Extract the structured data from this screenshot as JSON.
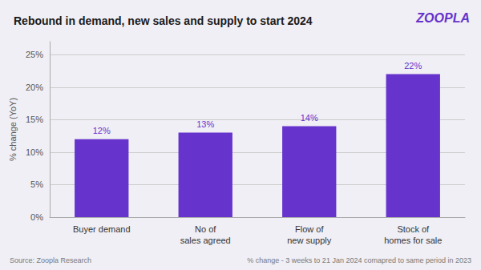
{
  "chart_data": {
    "type": "bar",
    "title": "Rebound in demand, new sales and supply to start 2024",
    "annotations": [
      "ZOOPLA",
      "Source: Zoopla Research",
      "% change - 3 weeks to 21 Jan 2024 comapred to same period in 2023"
    ],
    "categories": [
      "Buyer demand",
      "No of\nsales agreed",
      "Flow of\nnew supply",
      "Stock of\nhomes for sale"
    ],
    "values": [
      12,
      13,
      14,
      22
    ],
    "value_labels": [
      "12%",
      "13%",
      "14%",
      "22%"
    ],
    "data_labels": true,
    "color": "#6633CC",
    "ylabel": "% change (YoY)",
    "ylim": [
      0,
      27
    ],
    "yticks": [
      {
        "value": 0,
        "label": "0%"
      },
      {
        "value": 5,
        "label": "5%"
      },
      {
        "value": 10,
        "label": "10%"
      },
      {
        "value": 15,
        "label": "15%"
      },
      {
        "value": 20,
        "label": "20%"
      },
      {
        "value": 25,
        "label": "25%"
      }
    ],
    "grid": true
  }
}
